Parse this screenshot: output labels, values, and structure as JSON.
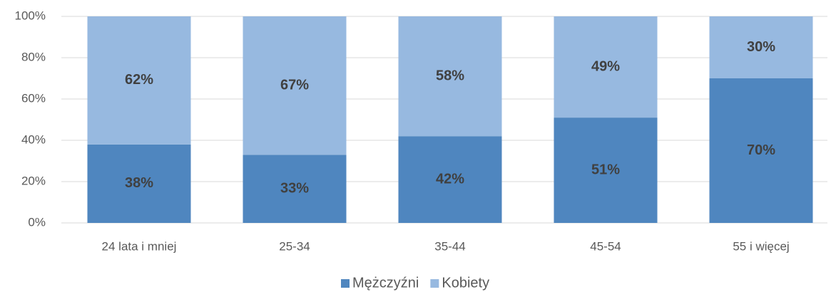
{
  "chart_data": {
    "type": "stacked_bar",
    "categories": [
      "24 lata i mniej",
      "25-34",
      "35-44",
      "45-54",
      "55 i więcej"
    ],
    "series": [
      {
        "name": "Mężczyźni",
        "color": "#4f86bf",
        "values": [
          38,
          33,
          42,
          51,
          70
        ],
        "value_labels": [
          "38%",
          "33%",
          "42%",
          "51%",
          "70%"
        ]
      },
      {
        "name": "Kobiety",
        "color": "#97b9e0",
        "values": [
          62,
          67,
          58,
          49,
          30
        ],
        "value_labels": [
          "62%",
          "67%",
          "58%",
          "49%",
          "30%"
        ]
      }
    ],
    "ylim": [
      0,
      100
    ],
    "yticks": [
      {
        "value": 0,
        "label": "0%"
      },
      {
        "value": 20,
        "label": "20%"
      },
      {
        "value": 40,
        "label": "40%"
      },
      {
        "value": 60,
        "label": "60%"
      },
      {
        "value": 80,
        "label": "80%"
      },
      {
        "value": 100,
        "label": "100%"
      }
    ],
    "grid": true,
    "legend": "bottom"
  }
}
